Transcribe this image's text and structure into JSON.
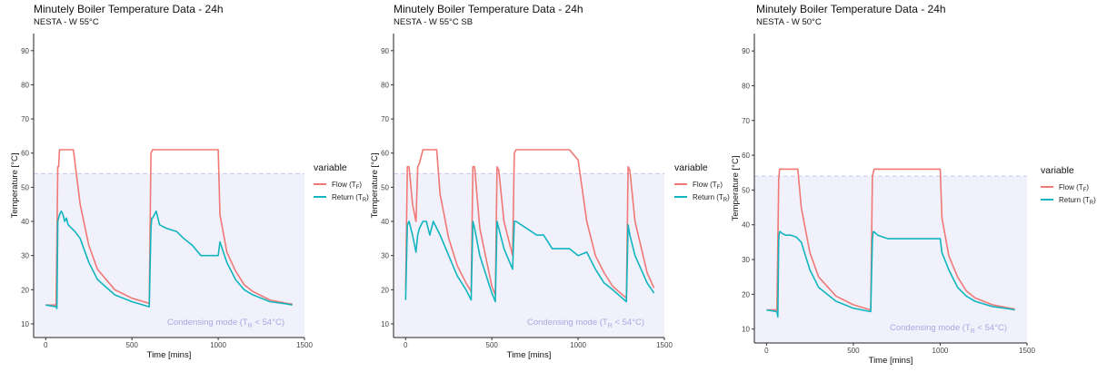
{
  "colors": {
    "flow": "#F07875",
    "return": "#11B5BE",
    "condensing_region": "#F1F1FC",
    "threshold_line": "#C8C8EE",
    "annotation": "#A8A8E0"
  },
  "shared": {
    "xlabel": "Time [mins]",
    "ylabel": "Temperature [°C]",
    "legend_title": "variable",
    "legend_flow": "Flow (T",
    "legend_flow_sub": "F",
    "legend_return": "Return (T",
    "legend_return_sub": "R",
    "annotation_main": "Condensing mode (T",
    "annotation_sub": "R",
    "annotation_tail": " < 54°C)"
  },
  "chart_data": [
    {
      "type": "line",
      "title": "Minutely Boiler Temperature Data - 24h",
      "subtitle": "NESTA - W 55°C",
      "xlabel": "Time [mins]",
      "ylabel": "Temperature [°C]",
      "xlim": [
        -70,
        1500
      ],
      "ylim": [
        6,
        95
      ],
      "x_ticks": [
        0,
        500,
        1000,
        1500
      ],
      "y_ticks": [
        10,
        20,
        30,
        40,
        50,
        60,
        70,
        80,
        90
      ],
      "condensing_threshold": 54,
      "legend_position": "right",
      "series": [
        {
          "name": "Flow (TF)",
          "x": [
            0,
            60,
            70,
            75,
            80,
            95,
            110,
            130,
            160,
            200,
            250,
            300,
            400,
            500,
            600,
            610,
            620,
            630,
            650,
            700,
            760,
            800,
            850,
            900,
            950,
            970,
            990,
            1000,
            1010,
            1050,
            1100,
            1150,
            1200,
            1300,
            1400,
            1430
          ],
          "y": [
            15.5,
            15.5,
            56,
            56,
            61,
            61,
            61,
            61,
            61,
            45,
            33,
            26,
            20,
            17.5,
            16,
            60,
            61,
            61,
            61,
            61,
            61,
            61,
            61,
            61,
            61,
            61,
            61,
            61,
            42,
            31,
            25.5,
            21.5,
            19.5,
            17,
            16,
            15.8
          ]
        },
        {
          "name": "Return (TR)",
          "x": [
            0,
            60,
            65,
            70,
            75,
            80,
            90,
            100,
            110,
            120,
            130,
            150,
            170,
            200,
            250,
            300,
            400,
            500,
            600,
            610,
            615,
            620,
            630,
            640,
            660,
            700,
            760,
            800,
            850,
            900,
            950,
            970,
            990,
            1000,
            1010,
            1050,
            1100,
            1150,
            1200,
            1300,
            1400,
            1430
          ],
          "y": [
            15.5,
            15,
            14.5,
            40,
            41,
            42,
            43,
            42,
            40,
            41,
            39,
            38,
            37,
            35,
            28,
            23,
            18.5,
            16.5,
            15,
            38,
            41,
            41,
            42,
            43,
            39,
            38,
            37,
            35,
            33,
            30,
            30,
            30,
            30,
            30,
            34,
            28,
            23,
            20,
            18.5,
            16.5,
            15.8,
            15.5
          ]
        }
      ]
    },
    {
      "type": "line",
      "title": "Minutely Boiler Temperature Data - 24h",
      "subtitle": "NESTA - W 55°C SB",
      "xlabel": "Time [mins]",
      "ylabel": "Temperature [°C]",
      "xlim": [
        -70,
        1500
      ],
      "ylim": [
        6,
        95
      ],
      "x_ticks": [
        0,
        500,
        1000,
        1500
      ],
      "y_ticks": [
        10,
        20,
        30,
        40,
        50,
        60,
        70,
        80,
        90
      ],
      "condensing_threshold": 54,
      "legend_position": "right",
      "series": [
        {
          "name": "Flow (TF)",
          "x": [
            0,
            10,
            20,
            40,
            60,
            70,
            80,
            100,
            120,
            140,
            160,
            180,
            200,
            250,
            300,
            350,
            380,
            390,
            400,
            430,
            500,
            520,
            530,
            540,
            570,
            620,
            630,
            640,
            700,
            760,
            800,
            850,
            900,
            950,
            1000,
            1050,
            1100,
            1150,
            1200,
            1280,
            1290,
            1300,
            1330,
            1400,
            1440
          ],
          "y": [
            20,
            56,
            56,
            45,
            40,
            56,
            57,
            61,
            61,
            61,
            61,
            61,
            48,
            35,
            27,
            22,
            19.5,
            56,
            56,
            38,
            21,
            18.5,
            56,
            55,
            40,
            30,
            60,
            61,
            61,
            61,
            61,
            61,
            61,
            61,
            58,
            40,
            30,
            25,
            21,
            17.5,
            56,
            55,
            40,
            25,
            20.5
          ]
        },
        {
          "name": "Return (TR)",
          "x": [
            0,
            10,
            20,
            40,
            60,
            70,
            80,
            100,
            120,
            140,
            160,
            180,
            200,
            250,
            300,
            350,
            380,
            390,
            400,
            430,
            500,
            520,
            530,
            540,
            570,
            620,
            630,
            640,
            700,
            760,
            800,
            850,
            900,
            950,
            1000,
            1050,
            1100,
            1150,
            1200,
            1280,
            1290,
            1300,
            1330,
            1400,
            1440
          ],
          "y": [
            17,
            39,
            40,
            36,
            31,
            36,
            38,
            40,
            40,
            36,
            40,
            38,
            36,
            30,
            24,
            20,
            17,
            40,
            38,
            30,
            19,
            16.5,
            40,
            38,
            32,
            26,
            40,
            40,
            38,
            36,
            36,
            32,
            32,
            32,
            30,
            31,
            26,
            22,
            20,
            16.5,
            39,
            36,
            30,
            22,
            19
          ]
        }
      ]
    },
    {
      "type": "line",
      "title": "Minutely Boiler Temperature Data - 24h",
      "subtitle": "NESTA - W 50°C",
      "xlabel": "Time [mins]",
      "ylabel": "Temperature [°C]",
      "xlim": [
        -70,
        1500
      ],
      "ylim": [
        6,
        95
      ],
      "x_ticks": [
        0,
        500,
        1000,
        1500
      ],
      "y_ticks": [
        10,
        20,
        30,
        40,
        50,
        60,
        70,
        80,
        90
      ],
      "condensing_threshold": 54,
      "legend_position": "right",
      "series": [
        {
          "name": "Flow (TF)",
          "x": [
            0,
            60,
            70,
            75,
            80,
            100,
            120,
            150,
            180,
            200,
            250,
            300,
            400,
            500,
            600,
            610,
            620,
            650,
            700,
            760,
            800,
            850,
            900,
            950,
            1000,
            1010,
            1050,
            1100,
            1150,
            1200,
            1300,
            1400,
            1430
          ],
          "y": [
            15.5,
            15.5,
            53,
            56,
            56,
            56,
            56,
            56,
            56,
            45,
            32,
            25,
            19.5,
            17,
            15.5,
            54,
            56,
            56,
            56,
            56,
            56,
            56,
            56,
            56,
            56,
            42,
            31,
            25,
            21,
            19,
            17,
            16,
            15.8
          ]
        },
        {
          "name": "Return (TR)",
          "x": [
            0,
            60,
            65,
            70,
            75,
            80,
            90,
            110,
            140,
            170,
            200,
            250,
            300,
            400,
            500,
            600,
            610,
            615,
            620,
            640,
            700,
            760,
            800,
            850,
            900,
            950,
            990,
            1000,
            1010,
            1050,
            1100,
            1150,
            1200,
            1300,
            1400,
            1430
          ],
          "y": [
            15.5,
            15,
            13.5,
            36,
            38,
            38,
            37.5,
            37,
            37,
            36.5,
            35,
            27,
            22,
            18,
            16,
            15,
            36,
            38,
            38,
            37,
            36,
            36,
            36,
            36,
            36,
            36,
            36,
            36,
            32,
            27,
            22,
            19.5,
            18,
            16.5,
            15.8,
            15.5
          ]
        }
      ]
    }
  ]
}
